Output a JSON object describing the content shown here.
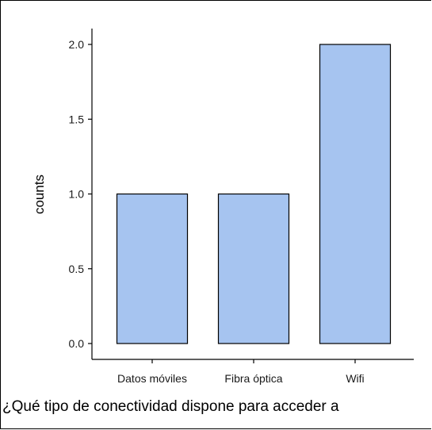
{
  "chart_data": {
    "type": "bar",
    "categories": [
      "Datos móviles",
      "Fibra óptica",
      "Wifi"
    ],
    "values": [
      1,
      1,
      2
    ],
    "ylabel": "counts",
    "xlabel": "¿Qué tipo de conectividad dispone para acceder a",
    "ylim": [
      0,
      2
    ],
    "yticks": [
      "0.0",
      "0.5",
      "1.0",
      "1.5",
      "2.0"
    ],
    "grid": false,
    "bar_color": "#a6c4f0",
    "bar_edge_color": "#000000"
  }
}
